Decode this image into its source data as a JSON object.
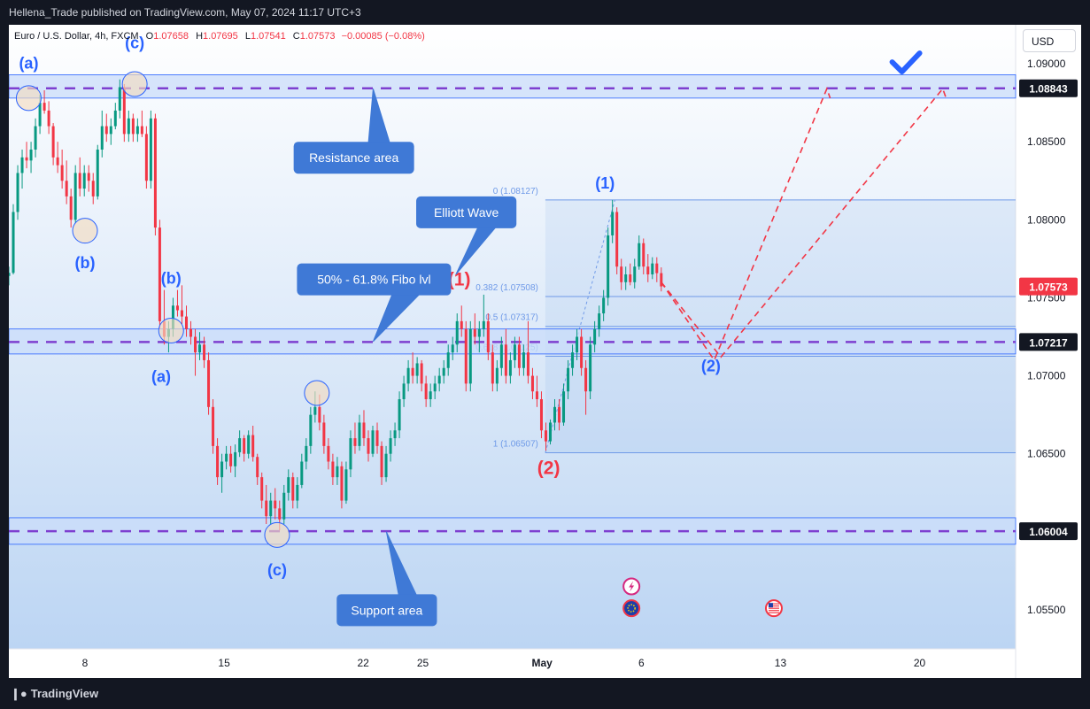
{
  "header": {
    "published": "Hellena_Trade published on TradingView.com, May 07, 2024 11:17 UTC+3"
  },
  "legend": {
    "symbol": "Euro / U.S. Dollar, 4h, FXCM",
    "open_label": "O",
    "open": "1.07658",
    "high_label": "H",
    "high": "1.07695",
    "low_label": "L",
    "low": "1.07541",
    "close_label": "C",
    "close": "1.07573",
    "change": "−0.00085 (−0.08%)"
  },
  "currency_button": "USD",
  "footer": {
    "brand": "TradingView"
  },
  "colors": {
    "up": "#089981",
    "down": "#f23645",
    "band_fill": "#c9dcfa",
    "band_border": "#2962ff",
    "dash_line": "#7e3fd0",
    "label_box": "#3f79d6",
    "wave_blue": "#2962ff",
    "wave_red": "#f23645",
    "price_tag": "#131722",
    "last_price_tag": "#f23645",
    "fibo_line": "#6f9ae8",
    "check": "#2962ff"
  },
  "chart_data": {
    "type": "candlestick",
    "symbol": "EUR/USD",
    "timeframe": "4h",
    "y_axis": {
      "min": 1.0525,
      "max": 1.0925,
      "ticks": [
        "1.09000",
        "1.08500",
        "1.08000",
        "1.07500",
        "1.07000",
        "1.06500",
        "1.06000",
        "1.05500"
      ]
    },
    "x_axis": {
      "start_date": "2024-04-04T04:00",
      "end_date": "2024-05-24T20:00",
      "ticks": [
        {
          "label": "8",
          "date": "2024-04-08"
        },
        {
          "label": "15",
          "date": "2024-04-15"
        },
        {
          "label": "22",
          "date": "2024-04-22"
        },
        {
          "label": "25",
          "date": "2024-04-25"
        },
        {
          "label": "May",
          "date": "2024-05-01",
          "bold": true
        },
        {
          "label": "6",
          "date": "2024-05-06"
        },
        {
          "label": "13",
          "date": "2024-05-13"
        },
        {
          "label": "20",
          "date": "2024-05-20"
        }
      ]
    },
    "price_tags": [
      {
        "value": 1.08843,
        "label": "1.08843",
        "kind": "level"
      },
      {
        "value": 1.07573,
        "label": "1.07573",
        "kind": "last"
      },
      {
        "value": 1.07217,
        "label": "1.07217",
        "kind": "level"
      },
      {
        "value": 1.06004,
        "label": "1.06004",
        "kind": "level"
      }
    ],
    "zones": [
      {
        "name": "resistance",
        "top": 1.0893,
        "bottom": 1.0878,
        "level": 1.08843
      },
      {
        "name": "fibo",
        "top": 1.073,
        "bottom": 1.0714,
        "level": 1.07217
      },
      {
        "name": "support",
        "top": 1.0609,
        "bottom": 1.0592,
        "level": 1.06004
      }
    ],
    "callouts": [
      {
        "text": "Resistance area",
        "box_time": "2024-04-18T12:00",
        "box_price": 1.085,
        "tip_time": "2024-04-22T12:00",
        "tip_price": 1.0884
      },
      {
        "text": "Elliott Wave",
        "box_time": "2024-04-24T16:00",
        "box_price": 1.0815,
        "tip_time": "2024-04-26T16:00",
        "tip_price": 1.0765
      },
      {
        "text": "50% - 61.8% Fibo lvl",
        "box_time": "2024-04-18T16:00",
        "box_price": 1.0772,
        "tip_time": "2024-04-22T12:00",
        "tip_price": 1.0722
      },
      {
        "text": "Support area",
        "box_time": "2024-04-20T16:00",
        "box_price": 1.056,
        "tip_time": "2024-04-23T04:00",
        "tip_price": 1.06
      }
    ],
    "wave_labels": [
      {
        "text": "(a)",
        "time": "2024-04-05T04:00",
        "price": 1.0897,
        "color": "blue"
      },
      {
        "text": "(c)",
        "time": "2024-04-10T12:00",
        "price": 1.091,
        "color": "blue"
      },
      {
        "text": "(b)",
        "time": "2024-04-08T00:00",
        "price": 1.0769,
        "color": "blue"
      },
      {
        "text": "(b)",
        "time": "2024-04-12T08:00",
        "price": 1.0759,
        "color": "blue"
      },
      {
        "text": "(a)",
        "time": "2024-04-11T20:00",
        "price": 1.0696,
        "color": "blue"
      },
      {
        "text": "(c)",
        "time": "2024-04-17T16:00",
        "price": 1.0572,
        "color": "blue"
      },
      {
        "text": "(1)",
        "time": "2024-04-26T20:00",
        "price": 1.0758,
        "color": "red"
      },
      {
        "text": "(2)",
        "time": "2024-05-01T08:00",
        "price": 1.0637,
        "color": "red"
      },
      {
        "text": "(1)",
        "time": "2024-05-04T04:00",
        "price": 1.082,
        "color": "blue"
      },
      {
        "text": "(2)",
        "time": "2024-05-09T12:00",
        "price": 1.0703,
        "color": "blue"
      }
    ],
    "circles": [
      {
        "time": "2024-04-05T04:00",
        "price": 1.0878
      },
      {
        "time": "2024-04-10T12:00",
        "price": 1.0887
      },
      {
        "time": "2024-04-08T00:00",
        "price": 1.0793
      },
      {
        "time": "2024-04-12T08:00",
        "price": 1.0729
      },
      {
        "time": "2024-04-17T16:00",
        "price": 1.0598
      },
      {
        "time": "2024-04-19T16:00",
        "price": 1.0689
      }
    ],
    "fibonacci": {
      "start_time": "2024-05-01T04:00",
      "end_time": "2024-05-24T20:00",
      "levels": [
        {
          "label": "0 (1.08127)",
          "price": 1.08127
        },
        {
          "label": "0.382 (1.07508)",
          "price": 1.07508
        },
        {
          "label": "0.5 (1.07317)",
          "price": 1.07317
        },
        {
          "label": "0.618 (1.07125)",
          "price": 1.07125
        },
        {
          "label": "1 (1.06507)",
          "price": 1.06507
        }
      ],
      "trend_from": {
        "time": "2024-05-01T04:00",
        "price": 1.06507
      },
      "trend_to": {
        "time": "2024-05-04T16:00",
        "price": 1.08127
      }
    },
    "projections": [
      {
        "points": [
          {
            "time": "2024-05-07T00:00",
            "price": 1.076
          },
          {
            "time": "2024-05-09T16:00",
            "price": 1.071
          },
          {
            "time": "2024-05-15T08:00",
            "price": 1.0884
          },
          {
            "time": "2024-05-15T12:00",
            "price": 1.0878
          }
        ]
      },
      {
        "points": [
          {
            "time": "2024-05-07T00:00",
            "price": 1.076
          },
          {
            "time": "2024-05-10T00:00",
            "price": 1.0712
          },
          {
            "time": "2024-05-21T04:00",
            "price": 1.0884
          },
          {
            "time": "2024-05-21T08:00",
            "price": 1.0878
          }
        ]
      }
    ],
    "checkmark": {
      "time": "2024-05-19T08:00",
      "price": 1.09
    },
    "event_icons": [
      {
        "name": "flash-icon",
        "time": "2024-05-05T12:00",
        "price": 1.0565
      },
      {
        "name": "eu-flag-icon",
        "time": "2024-05-05T12:00",
        "price": 1.0551
      },
      {
        "name": "us-flag-icon",
        "time": "2024-05-12T16:00",
        "price": 1.0551
      }
    ],
    "ohlc": [
      [
        1.0764,
        1.077,
        1.0758,
        1.0766
      ],
      [
        1.0766,
        1.081,
        1.0765,
        1.0805
      ],
      [
        1.0805,
        1.0835,
        1.08,
        1.083
      ],
      [
        1.083,
        1.0845,
        1.082,
        1.084
      ],
      [
        1.084,
        1.085,
        1.0833,
        1.0838
      ],
      [
        1.0838,
        1.085,
        1.083,
        1.0845
      ],
      [
        1.0845,
        1.0865,
        1.084,
        1.086
      ],
      [
        1.086,
        1.088,
        1.0855,
        1.0875
      ],
      [
        1.0875,
        1.0883,
        1.0868,
        1.087
      ],
      [
        1.087,
        1.0876,
        1.0855,
        1.086
      ],
      [
        1.086,
        1.0862,
        1.0835,
        1.084
      ],
      [
        1.084,
        1.085,
        1.083,
        1.0835
      ],
      [
        1.0835,
        1.0845,
        1.082,
        1.0825
      ],
      [
        1.0825,
        1.0838,
        1.081,
        1.0815
      ],
      [
        1.0815,
        1.082,
        1.0795,
        1.08
      ],
      [
        1.08,
        1.0835,
        1.0798,
        1.083
      ],
      [
        1.083,
        1.084,
        1.0815,
        1.082
      ],
      [
        1.082,
        1.0835,
        1.0815,
        1.083
      ],
      [
        1.083,
        1.0835,
        1.0818,
        1.0825
      ],
      [
        1.0825,
        1.083,
        1.081,
        1.0815
      ],
      [
        1.0815,
        1.0848,
        1.0813,
        1.0845
      ],
      [
        1.0845,
        1.087,
        1.084,
        1.086
      ],
      [
        1.086,
        1.0868,
        1.085,
        1.0855
      ],
      [
        1.0855,
        1.0865,
        1.0848,
        1.086
      ],
      [
        1.086,
        1.0875,
        1.0858,
        1.087
      ],
      [
        1.087,
        1.089,
        1.0865,
        1.0885
      ],
      [
        1.0885,
        1.0887,
        1.085,
        1.0855
      ],
      [
        1.0855,
        1.087,
        1.085,
        1.0865
      ],
      [
        1.0865,
        1.0868,
        1.085,
        1.0855
      ],
      [
        1.0855,
        1.0865,
        1.085,
        1.086
      ],
      [
        1.086,
        1.087,
        1.0853,
        1.0855
      ],
      [
        1.0855,
        1.086,
        1.082,
        1.0825
      ],
      [
        1.0825,
        1.087,
        1.082,
        1.0865
      ],
      [
        1.0865,
        1.0868,
        1.079,
        1.0795
      ],
      [
        1.0795,
        1.08,
        1.073,
        1.0735
      ],
      [
        1.0735,
        1.0755,
        1.072,
        1.0725
      ],
      [
        1.0725,
        1.0735,
        1.0715,
        1.073
      ],
      [
        1.073,
        1.075,
        1.0725,
        1.0745
      ],
      [
        1.0745,
        1.0755,
        1.0738,
        1.0742
      ],
      [
        1.0742,
        1.0758,
        1.0733,
        1.0738
      ],
      [
        1.0738,
        1.0745,
        1.0725,
        1.073
      ],
      [
        1.073,
        1.0735,
        1.072,
        1.0725
      ],
      [
        1.0725,
        1.073,
        1.07,
        1.0715
      ],
      [
        1.0715,
        1.0728,
        1.071,
        1.072
      ],
      [
        1.072,
        1.0725,
        1.0705,
        1.071
      ],
      [
        1.071,
        1.0715,
        1.0675,
        1.068
      ],
      [
        1.068,
        1.0685,
        1.065,
        1.0655
      ],
      [
        1.0655,
        1.066,
        1.063,
        1.0635
      ],
      [
        1.0635,
        1.065,
        1.0625,
        1.0645
      ],
      [
        1.0645,
        1.0655,
        1.064,
        1.065
      ],
      [
        1.065,
        1.0655,
        1.0638,
        1.0642
      ],
      [
        1.0642,
        1.0656,
        1.0635,
        1.0651
      ],
      [
        1.0651,
        1.0665,
        1.0648,
        1.066
      ],
      [
        1.066,
        1.0662,
        1.0645,
        1.065
      ],
      [
        1.065,
        1.0665,
        1.0647,
        1.0662
      ],
      [
        1.0662,
        1.0668,
        1.0645,
        1.0648
      ],
      [
        1.0648,
        1.065,
        1.063,
        1.0635
      ],
      [
        1.0635,
        1.0638,
        1.0615,
        1.062
      ],
      [
        1.062,
        1.063,
        1.0605,
        1.061
      ],
      [
        1.061,
        1.0625,
        1.0605,
        1.062
      ],
      [
        1.062,
        1.0628,
        1.0608,
        1.0615
      ],
      [
        1.0615,
        1.062,
        1.0601,
        1.0608
      ],
      [
        1.0608,
        1.063,
        1.0605,
        1.0625
      ],
      [
        1.0625,
        1.064,
        1.062,
        1.0635
      ],
      [
        1.0635,
        1.0638,
        1.0615,
        1.062
      ],
      [
        1.062,
        1.0635,
        1.0615,
        1.063
      ],
      [
        1.063,
        1.065,
        1.0628,
        1.0645
      ],
      [
        1.0645,
        1.066,
        1.064,
        1.0655
      ],
      [
        1.0655,
        1.068,
        1.065,
        1.0675
      ],
      [
        1.0675,
        1.069,
        1.067,
        1.068
      ],
      [
        1.068,
        1.0688,
        1.0665,
        1.067
      ],
      [
        1.067,
        1.0675,
        1.065,
        1.0655
      ],
      [
        1.0655,
        1.066,
        1.064,
        1.0645
      ],
      [
        1.0645,
        1.065,
        1.063,
        1.0635
      ],
      [
        1.0635,
        1.0648,
        1.063,
        1.0642
      ],
      [
        1.0642,
        1.0645,
        1.0615,
        1.062
      ],
      [
        1.062,
        1.0645,
        1.0618,
        1.064
      ],
      [
        1.064,
        1.0665,
        1.0635,
        1.066
      ],
      [
        1.066,
        1.067,
        1.065,
        1.0655
      ],
      [
        1.0655,
        1.0675,
        1.0652,
        1.067
      ],
      [
        1.067,
        1.0678,
        1.0655,
        1.066
      ],
      [
        1.066,
        1.0665,
        1.0645,
        1.065
      ],
      [
        1.065,
        1.0668,
        1.0648,
        1.0665
      ],
      [
        1.0665,
        1.067,
        1.065,
        1.0655
      ],
      [
        1.0655,
        1.0658,
        1.063,
        1.0635
      ],
      [
        1.0635,
        1.0655,
        1.0632,
        1.065
      ],
      [
        1.065,
        1.0665,
        1.0645,
        1.066
      ],
      [
        1.066,
        1.067,
        1.0655,
        1.0665
      ],
      [
        1.0665,
        1.069,
        1.066,
        1.0685
      ],
      [
        1.0685,
        1.07,
        1.068,
        1.0695
      ],
      [
        1.0695,
        1.071,
        1.069,
        1.0705
      ],
      [
        1.0705,
        1.0715,
        1.0695,
        1.07
      ],
      [
        1.07,
        1.0712,
        1.0695,
        1.0708
      ],
      [
        1.0708,
        1.071,
        1.069,
        1.0695
      ],
      [
        1.0695,
        1.07,
        1.068,
        1.0685
      ],
      [
        1.0685,
        1.0695,
        1.068,
        1.069
      ],
      [
        1.069,
        1.07,
        1.0685,
        1.0695
      ],
      [
        1.0695,
        1.0705,
        1.069,
        1.07
      ],
      [
        1.07,
        1.071,
        1.0695,
        1.0705
      ],
      [
        1.0705,
        1.072,
        1.07,
        1.0715
      ],
      [
        1.0715,
        1.0725,
        1.071,
        1.072
      ],
      [
        1.072,
        1.074,
        1.0715,
        1.0735
      ],
      [
        1.0735,
        1.0745,
        1.0725,
        1.073
      ],
      [
        1.073,
        1.0735,
        1.069,
        1.0695
      ],
      [
        1.0695,
        1.0735,
        1.069,
        1.073
      ],
      [
        1.073,
        1.074,
        1.072,
        1.0725
      ],
      [
        1.0725,
        1.0735,
        1.0715,
        1.073
      ],
      [
        1.073,
        1.0752,
        1.0725,
        1.0735
      ],
      [
        1.0735,
        1.074,
        1.071,
        1.0715
      ],
      [
        1.0715,
        1.072,
        1.069,
        1.0695
      ],
      [
        1.0695,
        1.071,
        1.069,
        1.0705
      ],
      [
        1.0705,
        1.0725,
        1.07,
        1.072
      ],
      [
        1.072,
        1.073,
        1.0695,
        1.07
      ],
      [
        1.07,
        1.0715,
        1.0695,
        1.071
      ],
      [
        1.071,
        1.0725,
        1.0705,
        1.072
      ],
      [
        1.072,
        1.0725,
        1.07,
        1.0705
      ],
      [
        1.0705,
        1.072,
        1.07,
        1.0715
      ],
      [
        1.0715,
        1.0735,
        1.0695,
        1.07
      ],
      [
        1.07,
        1.0705,
        1.0685,
        1.069
      ],
      [
        1.069,
        1.07,
        1.068,
        1.0685
      ],
      [
        1.0685,
        1.069,
        1.066,
        1.0665
      ],
      [
        1.0665,
        1.067,
        1.0652,
        1.0658
      ],
      [
        1.0658,
        1.0672,
        1.0656,
        1.067
      ],
      [
        1.067,
        1.0685,
        1.0665,
        1.068
      ],
      [
        1.068,
        1.0685,
        1.0665,
        1.067
      ],
      [
        1.067,
        1.0695,
        1.0668,
        1.069
      ],
      [
        1.069,
        1.071,
        1.0685,
        1.0705
      ],
      [
        1.0705,
        1.072,
        1.07,
        1.0715
      ],
      [
        1.0715,
        1.073,
        1.071,
        1.0725
      ],
      [
        1.0725,
        1.073,
        1.07,
        1.0705
      ],
      [
        1.0705,
        1.071,
        1.0675,
        1.069
      ],
      [
        1.069,
        1.0725,
        1.0685,
        1.072
      ],
      [
        1.072,
        1.0735,
        1.0715,
        1.073
      ],
      [
        1.073,
        1.0745,
        1.0725,
        1.074
      ],
      [
        1.074,
        1.0755,
        1.0735,
        1.075
      ],
      [
        1.075,
        1.0795,
        1.0745,
        1.079
      ],
      [
        1.079,
        1.08127,
        1.0785,
        1.0805
      ],
      [
        1.0805,
        1.0808,
        1.0765,
        1.077
      ],
      [
        1.077,
        1.0775,
        1.0755,
        1.076
      ],
      [
        1.076,
        1.077,
        1.0755,
        1.0765
      ],
      [
        1.0765,
        1.0772,
        1.0758,
        1.076
      ],
      [
        1.076,
        1.0775,
        1.0756,
        1.077
      ],
      [
        1.077,
        1.079,
        1.0768,
        1.0785
      ],
      [
        1.0785,
        1.0788,
        1.0765,
        1.077
      ],
      [
        1.077,
        1.0778,
        1.076,
        1.0765
      ],
      [
        1.0765,
        1.0776,
        1.0762,
        1.0772
      ],
      [
        1.0772,
        1.0776,
        1.076,
        1.07658
      ],
      [
        1.07658,
        1.07695,
        1.07541,
        1.07573
      ]
    ]
  }
}
